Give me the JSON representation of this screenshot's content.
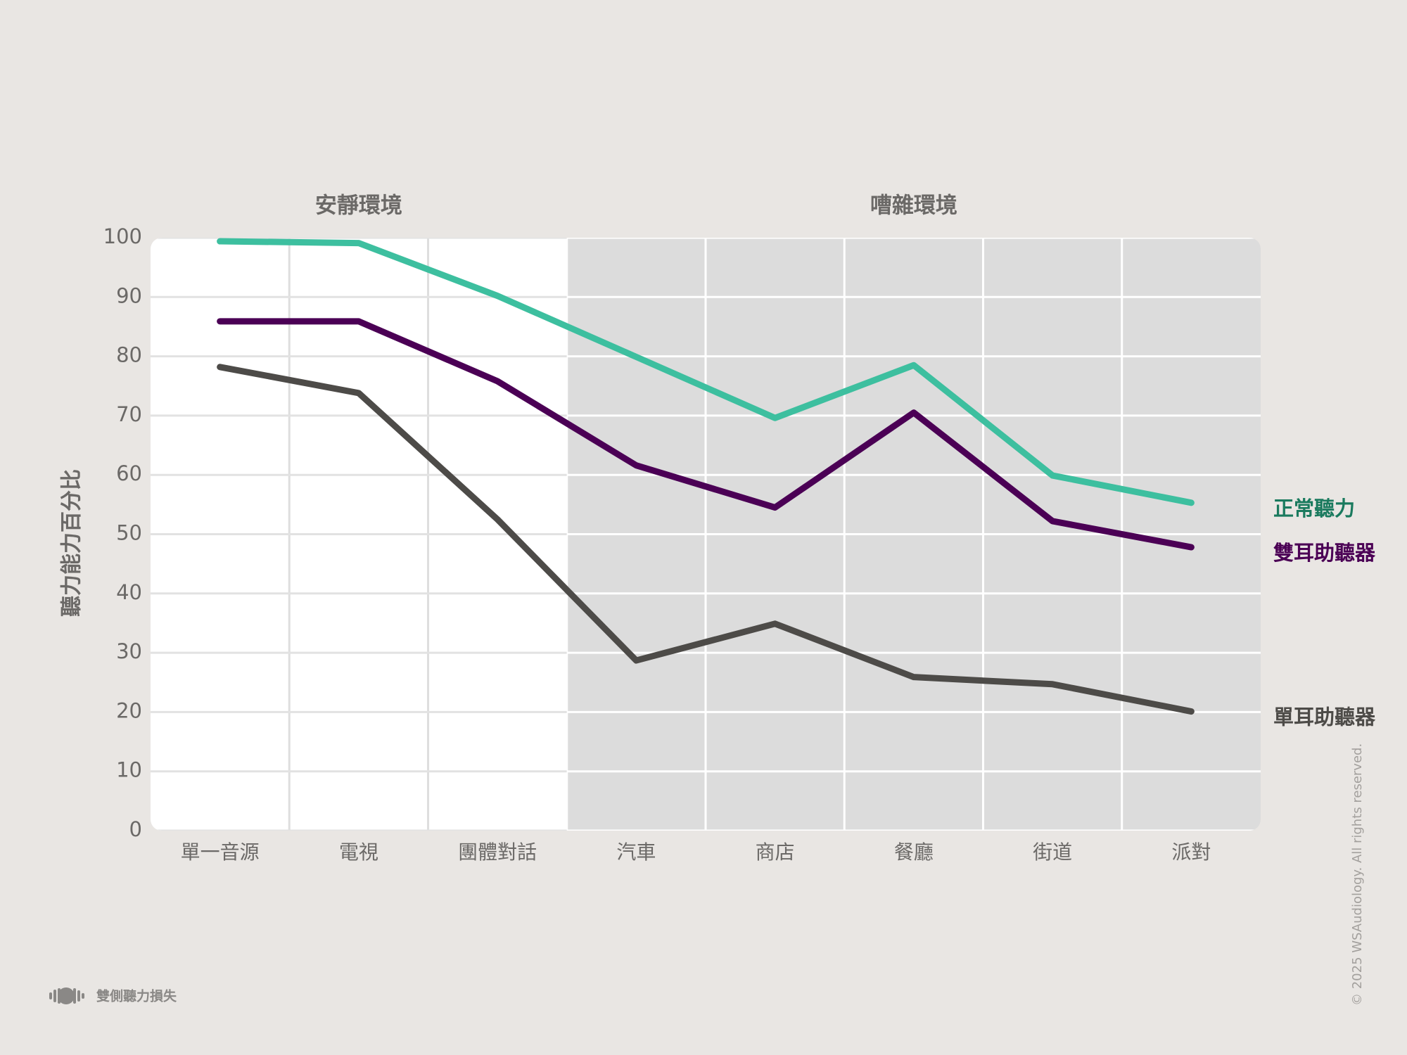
{
  "chart_data": {
    "type": "line",
    "region_labels": [
      "安靜環境",
      "嘈雜環境"
    ],
    "ylabel": "聽力能力百分比",
    "categories": [
      "單一音源",
      "電視",
      "團體對話",
      "汽車",
      "商店",
      "餐廳",
      "街道",
      "派對"
    ],
    "series": [
      {
        "name": "正常聽力",
        "color": "#3dbf9f",
        "label_color": "#1a7a5e",
        "values": [
          99.4,
          99.1,
          90.2,
          79.9,
          69.6,
          78.5,
          59.9,
          55.3
        ]
      },
      {
        "name": "雙耳助聽器",
        "color": "#4b0055",
        "label_color": "#4b0055",
        "values": [
          85.9,
          85.9,
          75.8,
          61.6,
          54.5,
          70.5,
          52.2,
          47.8
        ]
      },
      {
        "name": "單耳助聽器",
        "color": "#4d4b48",
        "label_color": "#4d4b48",
        "values": [
          78.2,
          73.8,
          52.5,
          28.7,
          34.9,
          25.9,
          24.7,
          20.1
        ]
      }
    ],
    "ylim": [
      0,
      100
    ],
    "yticks": [
      0,
      10,
      20,
      30,
      40,
      50,
      60,
      70,
      80,
      90,
      100
    ],
    "grid": true
  },
  "footer": {
    "label": "雙側聽力損失",
    "copyright": "© 2025 WSAudiology. All rights reserved."
  }
}
